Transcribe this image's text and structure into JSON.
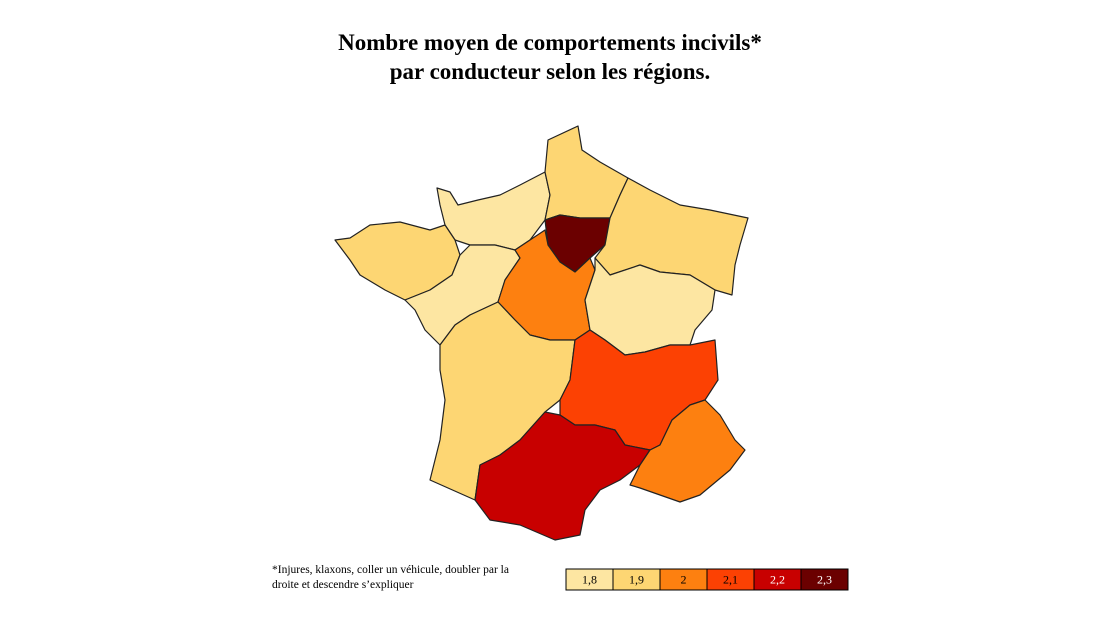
{
  "title": "Nombre moyen de comportements incivils* par conducteur selon les régions.",
  "footnote": "*Injures, klaxons, coller un véhicule, doubler par la droite et descendre s’expliquer",
  "legend": [
    {
      "value": 1.8,
      "label": "1,8",
      "color": "#fde6a2"
    },
    {
      "value": 1.9,
      "label": "1,9",
      "color": "#fdd673"
    },
    {
      "value": 2,
      "label": "2",
      "color": "#fd8010"
    },
    {
      "value": 2.1,
      "label": "2,1",
      "color": "#fc4103"
    },
    {
      "value": 2.2,
      "label": "2,2",
      "color": "#c80000"
    },
    {
      "value": 2.3,
      "label": "2,3",
      "color": "#6b0000"
    }
  ],
  "regions": {
    "values": [
      1.8,
      1.9,
      2.3,
      1.9,
      1.9,
      1.8,
      2,
      1.8,
      1.9,
      2.1,
      2.2,
      2
    ]
  }
}
